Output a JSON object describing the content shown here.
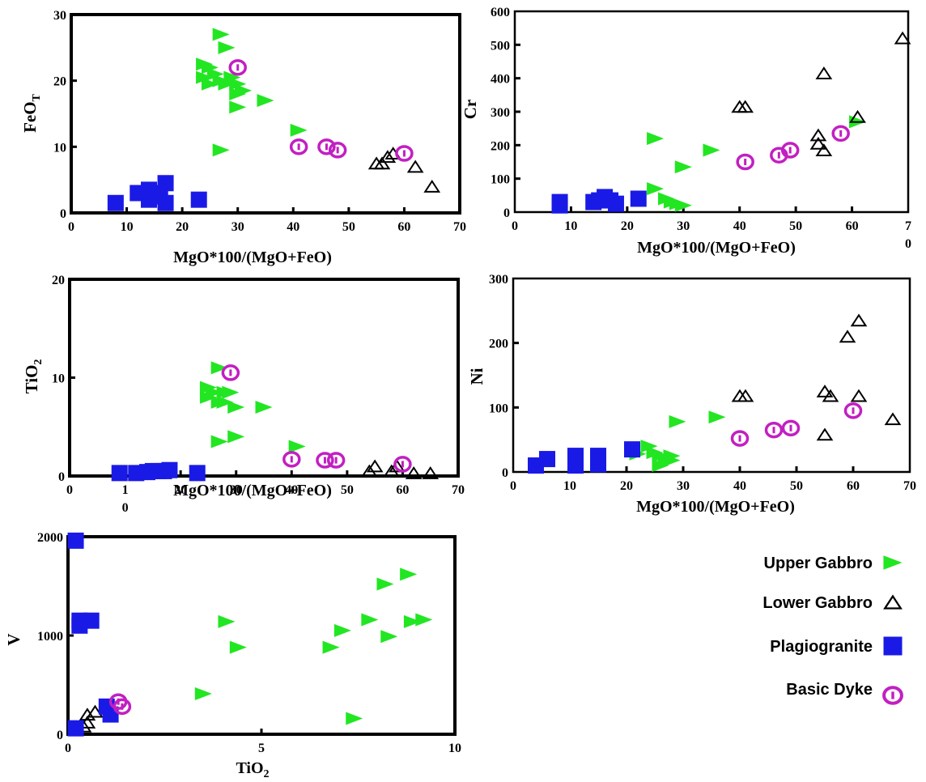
{
  "colors": {
    "upper_gabbro": "#22e622",
    "lower_gabbro": "#000000",
    "plagiogranite": "#1a1ae6",
    "basic_dyke": "#c21fc2",
    "frame": "#000000"
  },
  "legend": {
    "items": [
      {
        "key": "upper",
        "label": "Upper Gabbro",
        "icon": "triangle-right-filled-icon"
      },
      {
        "key": "lower",
        "label": "Lower Gabbro",
        "icon": "triangle-up-open-icon"
      },
      {
        "key": "plag",
        "label": "Plagiogranite",
        "icon": "square-filled-icon"
      },
      {
        "key": "dyke",
        "label": "Basic Dyke",
        "icon": "circle-ring-icon"
      }
    ]
  },
  "chart_data": [
    {
      "id": "feo",
      "type": "scatter",
      "xlabel": "MgO*100/(MgO+FeO)",
      "ylabel": "FeO",
      "ylabel_sub": "T",
      "xlim": [
        0,
        70
      ],
      "ylim": [
        0,
        30
      ],
      "x_ticks": [
        "0",
        "10",
        "20",
        "30",
        "40",
        "50",
        "60",
        "70"
      ],
      "y_ticks": [
        "0",
        "10",
        "20",
        "30"
      ],
      "series": [
        {
          "key": "upper",
          "name": "Upper Gabbro",
          "points": [
            [
              27,
              27
            ],
            [
              28,
              25
            ],
            [
              24,
              22.5
            ],
            [
              25,
              22
            ],
            [
              24,
              20.5
            ],
            [
              26,
              21
            ],
            [
              25,
              19.5
            ],
            [
              27,
              20
            ],
            [
              28,
              19.5
            ],
            [
              29,
              20.5
            ],
            [
              30,
              19.5
            ],
            [
              30,
              18
            ],
            [
              31,
              18.5
            ],
            [
              30,
              16
            ],
            [
              35,
              17
            ],
            [
              27,
              9.5
            ],
            [
              41,
              12.5
            ]
          ]
        },
        {
          "key": "lower",
          "name": "Lower Gabbro",
          "points": [
            [
              55,
              7.5
            ],
            [
              56,
              7.5
            ],
            [
              57,
              8.5
            ],
            [
              58,
              9
            ],
            [
              62,
              7
            ],
            [
              65,
              4
            ]
          ]
        },
        {
          "key": "plag",
          "name": "Plagiogranite",
          "points": [
            [
              8,
              1.5
            ],
            [
              12,
              3
            ],
            [
              14,
              2
            ],
            [
              14,
              3.5
            ],
            [
              15,
              3
            ],
            [
              16,
              2.5
            ],
            [
              17,
              4.5
            ],
            [
              17,
              1.5
            ],
            [
              23,
              2
            ]
          ]
        },
        {
          "key": "dyke",
          "name": "Basic Dyke",
          "points": [
            [
              30,
              22
            ],
            [
              41,
              10
            ],
            [
              46,
              10
            ],
            [
              48,
              9.5
            ],
            [
              60,
              9
            ]
          ]
        }
      ]
    },
    {
      "id": "cr",
      "type": "scatter",
      "xlabel": "MgO*100/(MgO+FeO)",
      "ylabel": "Cr",
      "xlim": [
        0,
        70
      ],
      "ylim": [
        0,
        600
      ],
      "x_ticks": [
        "0",
        "10",
        "20",
        "30",
        "40",
        "50",
        "60",
        "7\n0"
      ],
      "y_ticks": [
        "0",
        "100",
        "200",
        "300",
        "400",
        "500",
        "600"
      ],
      "series": [
        {
          "key": "upper",
          "name": "Upper Gabbro",
          "points": [
            [
              25,
              220
            ],
            [
              25,
              70
            ],
            [
              35,
              185
            ],
            [
              30,
              135
            ],
            [
              27,
              40
            ],
            [
              28,
              30
            ],
            [
              29,
              25
            ],
            [
              30,
              20
            ],
            [
              61,
              270
            ]
          ]
        },
        {
          "key": "lower",
          "name": "Lower Gabbro",
          "points": [
            [
              40,
              315
            ],
            [
              41,
              315
            ],
            [
              55,
              415
            ],
            [
              54,
              230
            ],
            [
              54,
              205
            ],
            [
              55,
              185
            ],
            [
              61,
              285
            ],
            [
              69,
              520
            ]
          ]
        },
        {
          "key": "plag",
          "name": "Plagiogranite",
          "points": [
            [
              8,
              30
            ],
            [
              8,
              20
            ],
            [
              14,
              30
            ],
            [
              15,
              35
            ],
            [
              16,
              45
            ],
            [
              17,
              35
            ],
            [
              18,
              25
            ],
            [
              22,
              40
            ]
          ]
        },
        {
          "key": "dyke",
          "name": "Basic Dyke",
          "points": [
            [
              41,
              150
            ],
            [
              47,
              170
            ],
            [
              49,
              185
            ],
            [
              58,
              235
            ]
          ]
        }
      ]
    },
    {
      "id": "tio2",
      "type": "scatter",
      "xlabel": "MgO*100/(MgO+FeO)",
      "ylabel": "TiO",
      "ylabel_sub": "2",
      "xlim": [
        0,
        70
      ],
      "ylim": [
        0,
        20
      ],
      "x_ticks": [
        "0",
        "1\n0",
        "20",
        "30",
        "40",
        "50",
        "60",
        "70"
      ],
      "y_ticks": [
        "0",
        "10",
        "20"
      ],
      "series": [
        {
          "key": "upper",
          "name": "Upper Gabbro",
          "points": [
            [
              27,
              11
            ],
            [
              25,
              9
            ],
            [
              26,
              8.5
            ],
            [
              25,
              8
            ],
            [
              27,
              7.5
            ],
            [
              28,
              8.5
            ],
            [
              29,
              8.5
            ],
            [
              30,
              7
            ],
            [
              28,
              7.5
            ],
            [
              35,
              7
            ],
            [
              30,
              4
            ],
            [
              27,
              3.5
            ],
            [
              41,
              3
            ]
          ]
        },
        {
          "key": "lower",
          "name": "Lower Gabbro",
          "points": [
            [
              54,
              0.5
            ],
            [
              55,
              1
            ],
            [
              58,
              0.5
            ],
            [
              59,
              1
            ],
            [
              62,
              0.3
            ],
            [
              65,
              0.3
            ]
          ]
        },
        {
          "key": "plag",
          "name": "Plagiogranite",
          "points": [
            [
              9,
              0.3
            ],
            [
              12,
              0.3
            ],
            [
              14,
              0.4
            ],
            [
              15,
              0.5
            ],
            [
              16,
              0.5
            ],
            [
              17,
              0.5
            ],
            [
              18,
              0.6
            ],
            [
              23,
              0.3
            ]
          ]
        },
        {
          "key": "dyke",
          "name": "Basic Dyke",
          "points": [
            [
              29,
              10.5
            ],
            [
              40,
              1.7
            ],
            [
              46,
              1.6
            ],
            [
              48,
              1.6
            ],
            [
              60,
              1.2
            ]
          ]
        }
      ]
    },
    {
      "id": "ni",
      "type": "scatter",
      "xlabel": "MgO*100/(MgO+FeO)",
      "ylabel": "Ni",
      "xlim": [
        0,
        70
      ],
      "ylim": [
        0,
        300
      ],
      "x_ticks": [
        "0",
        "10",
        "20",
        "30",
        "40",
        "50",
        "60",
        "70"
      ],
      "y_ticks": [
        "0",
        "100",
        "200",
        "300"
      ],
      "series": [
        {
          "key": "upper",
          "name": "Upper Gabbro",
          "points": [
            [
              24,
              40
            ],
            [
              22,
              28
            ],
            [
              25,
              30
            ],
            [
              26,
              25
            ],
            [
              27,
              20
            ],
            [
              28,
              25
            ],
            [
              28,
              18
            ],
            [
              26,
              10
            ],
            [
              29,
              78
            ],
            [
              36,
              85
            ]
          ]
        },
        {
          "key": "lower",
          "name": "Lower Gabbro",
          "points": [
            [
              40,
              118
            ],
            [
              41,
              118
            ],
            [
              55,
              125
            ],
            [
              56,
              118
            ],
            [
              55,
              58
            ],
            [
              59,
              210
            ],
            [
              61,
              235
            ],
            [
              61,
              118
            ],
            [
              67,
              82
            ]
          ]
        },
        {
          "key": "plag",
          "name": "Plagiogranite",
          "points": [
            [
              4,
              10
            ],
            [
              6,
              20
            ],
            [
              11,
              25
            ],
            [
              11,
              10
            ],
            [
              15,
              25
            ],
            [
              15,
              12
            ],
            [
              21,
              35
            ]
          ]
        },
        {
          "key": "dyke",
          "name": "Basic Dyke",
          "points": [
            [
              40,
              52
            ],
            [
              46,
              65
            ],
            [
              49,
              68
            ],
            [
              60,
              95
            ]
          ]
        }
      ]
    },
    {
      "id": "v",
      "type": "scatter",
      "xlabel": "TiO",
      "xlabel_sub": "2",
      "ylabel": "V",
      "xlim": [
        0,
        10
      ],
      "ylim": [
        0,
        2000
      ],
      "x_ticks": [
        "0",
        "5",
        "10"
      ],
      "y_ticks": [
        "0",
        "1000",
        "2000"
      ],
      "series": [
        {
          "key": "upper",
          "name": "Upper Gabbro",
          "points": [
            [
              8.8,
              1620
            ],
            [
              8.2,
              1520
            ],
            [
              7.8,
              1160
            ],
            [
              7.1,
              1050
            ],
            [
              6.8,
              880
            ],
            [
              8.3,
              990
            ],
            [
              8.9,
              1140
            ],
            [
              9.2,
              1160
            ],
            [
              4.1,
              1140
            ],
            [
              4.4,
              880
            ],
            [
              3.5,
              410
            ],
            [
              7.4,
              160
            ]
          ]
        },
        {
          "key": "lower",
          "name": "Lower Gabbro",
          "points": [
            [
              0.5,
              120
            ],
            [
              0.5,
              200
            ],
            [
              0.7,
              230
            ],
            [
              0.4,
              80
            ]
          ]
        },
        {
          "key": "plag",
          "name": "Plagiogranite",
          "points": [
            [
              0.2,
              1960
            ],
            [
              0.3,
              1150
            ],
            [
              0.3,
              1100
            ],
            [
              0.6,
              1150
            ],
            [
              1.0,
              280
            ],
            [
              1.1,
              200
            ],
            [
              0.2,
              60
            ]
          ]
        },
        {
          "key": "dyke",
          "name": "Basic Dyke",
          "points": [
            [
              1.3,
              330
            ],
            [
              1.4,
              280
            ]
          ]
        }
      ]
    }
  ]
}
